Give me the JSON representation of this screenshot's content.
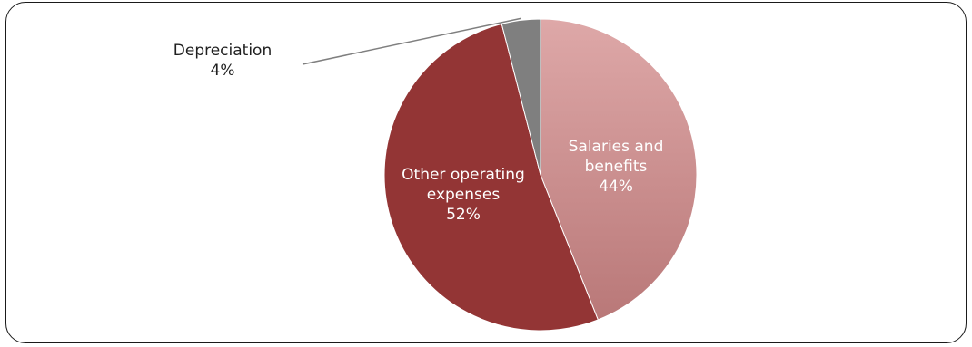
{
  "chart_data": {
    "type": "pie",
    "title": "",
    "start_angle_deg": 0,
    "direction": "clockwise",
    "slices": [
      {
        "name": "Salaries and benefits",
        "label_lines": [
          "Salaries and",
          "benefits"
        ],
        "value": 44,
        "value_label": "44%",
        "color": "#c98c8c",
        "color_light": "#dea8a8",
        "label_color": "#ffffff"
      },
      {
        "name": "Other operating expenses",
        "label_lines": [
          "Other operating",
          "expenses"
        ],
        "value": 52,
        "value_label": "52%",
        "color": "#933535",
        "label_color": "#ffffff"
      },
      {
        "name": "Depreciation",
        "label_lines": [
          "Depreciation"
        ],
        "value": 4,
        "value_label": "4%",
        "color": "#7f7f7f",
        "label_color": "#1f1f1f"
      }
    ],
    "legend": "none",
    "data_labels": "category-and-percent"
  }
}
